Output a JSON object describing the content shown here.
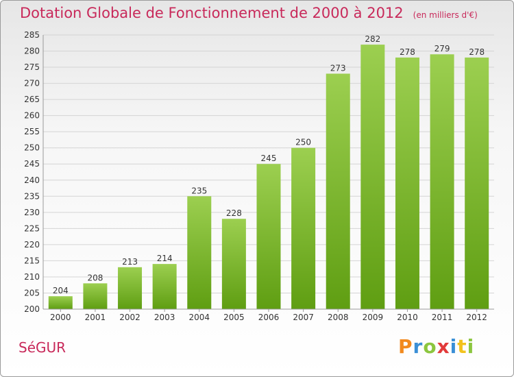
{
  "header": {
    "title": "Dotation Globale de Fonctionnement de 2000 à 2012",
    "subtitle": "(en milliers d'€)"
  },
  "footer": {
    "commune": "SéGUR",
    "logo_letters": [
      "P",
      "r",
      "o",
      "x",
      "i",
      "t",
      "i"
    ],
    "logo_colors": [
      "#f28a1e",
      "#3a8fd6",
      "#8cc63f",
      "#e23a3a",
      "#3a8fd6",
      "#f2c21e",
      "#8cc63f"
    ]
  },
  "chart_data": {
    "type": "bar",
    "title": "Dotation Globale de Fonctionnement de 2000 à 2012",
    "subtitle": "(en milliers d'€)",
    "categories": [
      "2000",
      "2001",
      "2002",
      "2003",
      "2004",
      "2005",
      "2006",
      "2007",
      "2008",
      "2009",
      "2010",
      "2011",
      "2012"
    ],
    "values": [
      204,
      208,
      213,
      214,
      235,
      228,
      245,
      250,
      273,
      282,
      278,
      279,
      278
    ],
    "ylim": [
      200,
      285
    ],
    "ytick_step": 5,
    "grid": true,
    "bar_color_top": "#9ccf50",
    "bar_color_bottom": "#5f9e12"
  }
}
